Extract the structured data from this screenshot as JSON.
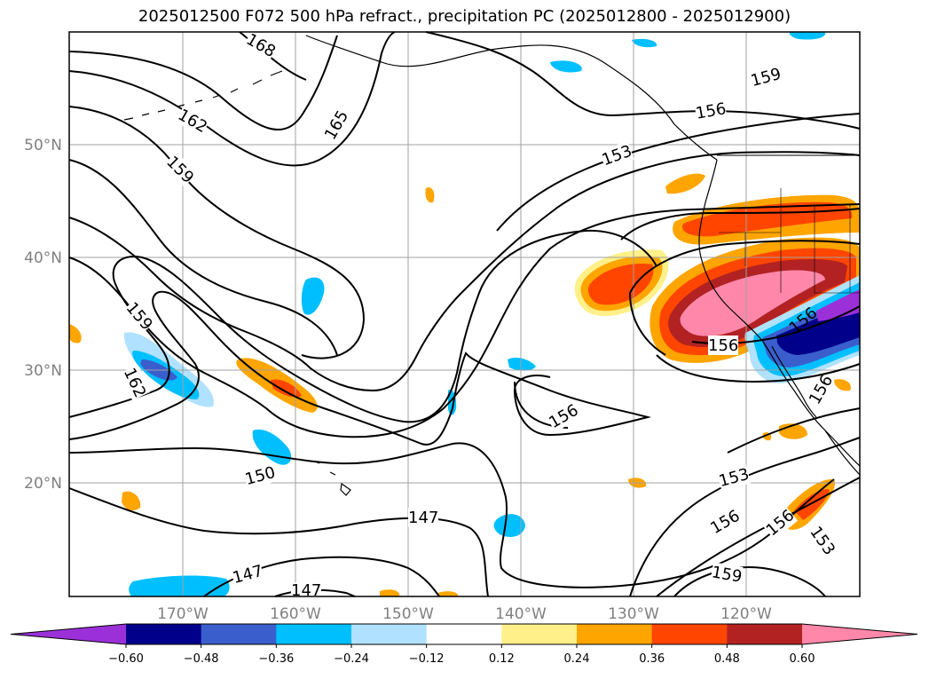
{
  "title": "2025012500 F072 500 hPa refract., precipitation PC (2025012800 - 2025012900)",
  "lat_ticks": [
    "50°N",
    "40°N",
    "30°N",
    "20°N"
  ],
  "lon_ticks": [
    "170°W",
    "160°W",
    "150°W",
    "140°W",
    "130°W",
    "120°W"
  ],
  "colorbar": {
    "tick_labels": [
      "−0.60",
      "−0.48",
      "−0.36",
      "−0.24",
      "−0.12",
      "0.12",
      "0.24",
      "0.36",
      "0.48",
      "0.60"
    ],
    "colors": [
      "#9b30d9",
      "#00008b",
      "#3a5fcd",
      "#00bfff",
      "#b0e2ff",
      "#ffffff",
      "#fff08a",
      "#ffa500",
      "#ff4500",
      "#b22222",
      "#ff88aa"
    ]
  },
  "contour_labels": [
    "168",
    "165",
    "162",
    "159",
    "159",
    "162",
    "159",
    "156",
    "153",
    "156",
    "156",
    "150",
    "147",
    "147",
    "147",
    "153",
    "156",
    "156",
    "159",
    "153",
    "156",
    "156"
  ],
  "colors": {
    "land_outline": "#000000",
    "grid": "#a0a0a0"
  }
}
